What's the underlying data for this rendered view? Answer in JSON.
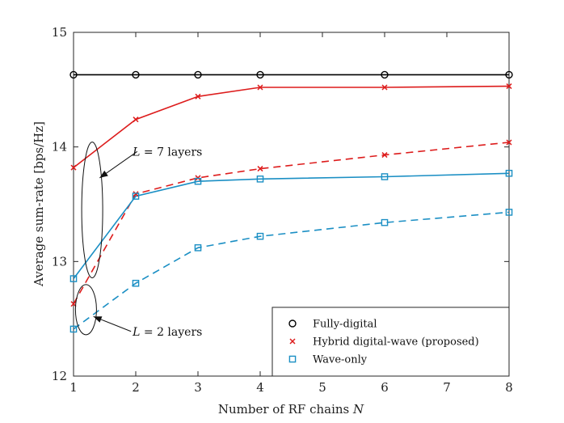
{
  "chart_data": {
    "type": "line",
    "title": "",
    "xlabel_prefix": "Number of RF chains ",
    "xlabel_var": "N",
    "ylabel": "Average sum-rate [bps/Hz]",
    "xlim": [
      1,
      8
    ],
    "ylim": [
      12,
      15
    ],
    "x_ticks": [
      1,
      2,
      3,
      4,
      5,
      6,
      7,
      8
    ],
    "y_ticks": [
      12,
      13,
      14,
      15
    ],
    "x": [
      1,
      2,
      3,
      4,
      6,
      8
    ],
    "grid": false,
    "legend_position": "bottom-right",
    "series": [
      {
        "name": "Fully-digital",
        "layers": null,
        "color": "#000000",
        "marker": "circle",
        "line": "solid",
        "values": [
          14.63,
          14.63,
          14.63,
          14.63,
          14.63,
          14.63
        ]
      },
      {
        "name": "Hybrid digital-wave (proposed)",
        "layers": 7,
        "color": "#dd1c1c",
        "marker": "x",
        "line": "solid",
        "values": [
          13.82,
          14.24,
          14.44,
          14.52,
          14.52,
          14.53
        ]
      },
      {
        "name": "Hybrid digital-wave (proposed)",
        "layers": 2,
        "color": "#dd1c1c",
        "marker": "x",
        "line": "dashed",
        "values": [
          12.63,
          13.59,
          13.73,
          13.81,
          13.93,
          14.04
        ]
      },
      {
        "name": "Wave-only",
        "layers": 7,
        "color": "#1b8fc4",
        "marker": "square",
        "line": "solid",
        "values": [
          12.85,
          13.57,
          13.7,
          13.72,
          13.74,
          13.77
        ]
      },
      {
        "name": "Wave-only",
        "layers": 2,
        "color": "#1b8fc4",
        "marker": "square",
        "line": "dashed",
        "values": [
          12.41,
          12.81,
          13.12,
          13.22,
          13.34,
          13.43
        ]
      }
    ],
    "legend": [
      {
        "label": "Fully-digital",
        "marker": "circle",
        "color": "#000000"
      },
      {
        "label": "Hybrid digital-wave (proposed)",
        "marker": "x",
        "color": "#dd1c1c"
      },
      {
        "label": "Wave-only",
        "marker": "square",
        "color": "#1b8fc4"
      }
    ],
    "annotations": [
      {
        "var": "L",
        "text": " = 7 layers",
        "target_x": 1.3,
        "target_y": 13.45
      },
      {
        "var": "L",
        "text": " = 2 layers",
        "target_x": 1.2,
        "target_y": 12.58
      }
    ]
  }
}
